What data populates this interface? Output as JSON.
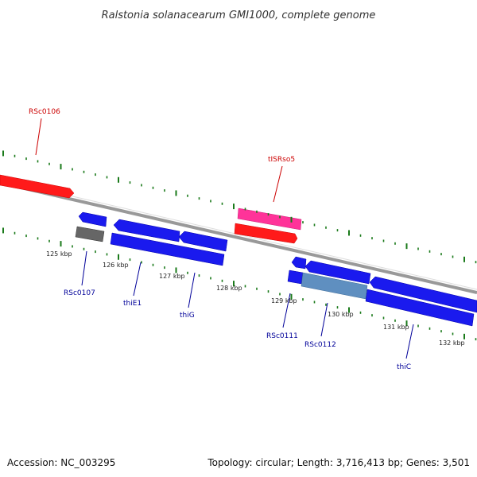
{
  "title": "Ralstonia solanacearum GMI1000, complete genome",
  "footer": {
    "accession": "Accession: NC_003295",
    "summary": "Topology: circular; Length: 3,716,413 bp; Genes: 3,501"
  },
  "colors": {
    "forward_label": "#cc0000",
    "reverse_label": "#000099",
    "backbone": "#888888",
    "tick": "#1a7a1a",
    "red_gene": "#ff1a1a",
    "pink_gene": "#ff3399",
    "blue_gene": "#1a1aee",
    "gray_gene": "#666666",
    "steel_gene": "#5f8fc0"
  },
  "ticks": {
    "labels": [
      "125 kbp",
      "126 kbp",
      "127 kbp",
      "128 kbp",
      "129 kbp",
      "130 kbp",
      "131 kbp",
      "132 kbp"
    ]
  },
  "gene_labels": {
    "forward": [
      "RSc0106",
      "tISRso5"
    ],
    "reverse": [
      "RSc0107",
      "thiE1",
      "thiG",
      "RSc0111",
      "RSc0112",
      "thiC"
    ]
  }
}
